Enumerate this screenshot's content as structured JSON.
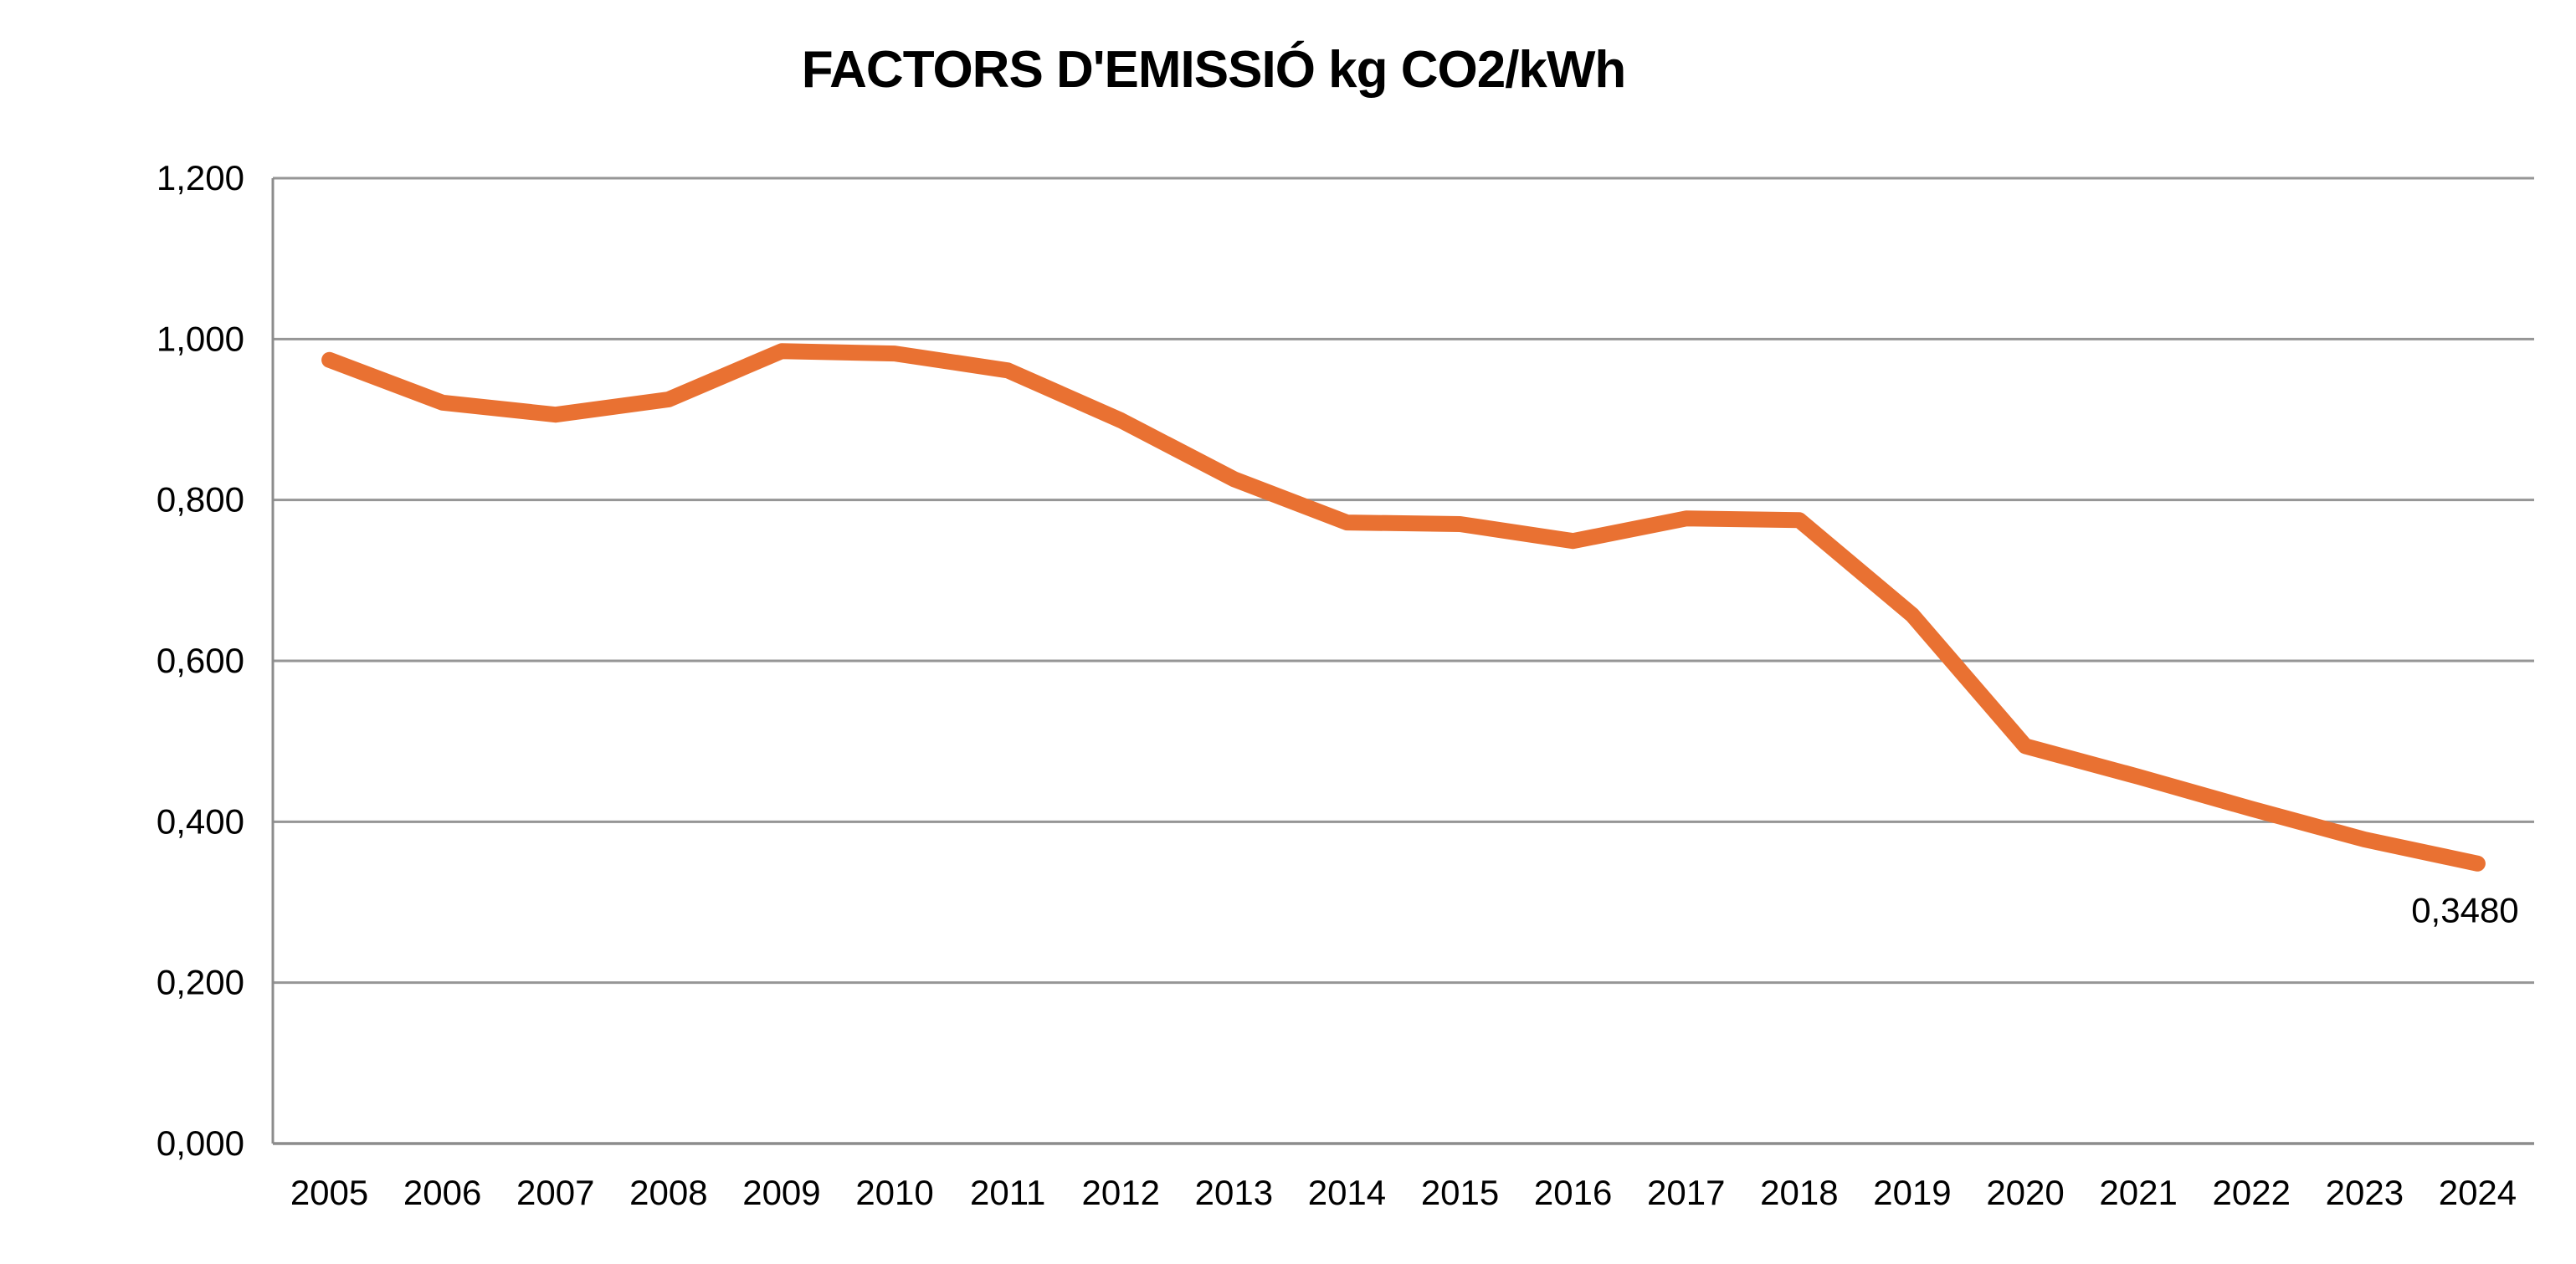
{
  "chart_data": {
    "type": "line",
    "title": "FACTORS D'EMISSIÓ kg CO2/kWh",
    "xlabel": "",
    "ylabel": "",
    "unit": "kg CO2/kWh",
    "categories": [
      "2005",
      "2006",
      "2007",
      "2008",
      "2009",
      "2010",
      "2011",
      "2012",
      "2013",
      "2014",
      "2015",
      "2016",
      "2017",
      "2018",
      "2019",
      "2020",
      "2021",
      "2022",
      "2023",
      "2024"
    ],
    "values": [
      0.974,
      0.921,
      0.906,
      0.925,
      0.985,
      0.982,
      0.961,
      0.899,
      0.826,
      0.772,
      0.77,
      0.749,
      0.777,
      0.775,
      0.657,
      0.494,
      0.456,
      0.416,
      0.378,
      0.348
    ],
    "last_point_label": "0,3480",
    "y_ticks": [
      {
        "label": "0,000",
        "value": 0.0
      },
      {
        "label": "0,200",
        "value": 0.2
      },
      {
        "label": "0,400",
        "value": 0.4
      },
      {
        "label": "0,600",
        "value": 0.6
      },
      {
        "label": "0,800",
        "value": 0.8
      },
      {
        "label": "1,000",
        "value": 1.0
      },
      {
        "label": "1,200",
        "value": 1.2
      }
    ],
    "ylim": [
      0,
      1.2
    ],
    "grid": true,
    "legend": false,
    "colors": {
      "line": "#E97132",
      "grid": "#969696",
      "axis": "#8C8C8C",
      "text": "#000000"
    }
  }
}
